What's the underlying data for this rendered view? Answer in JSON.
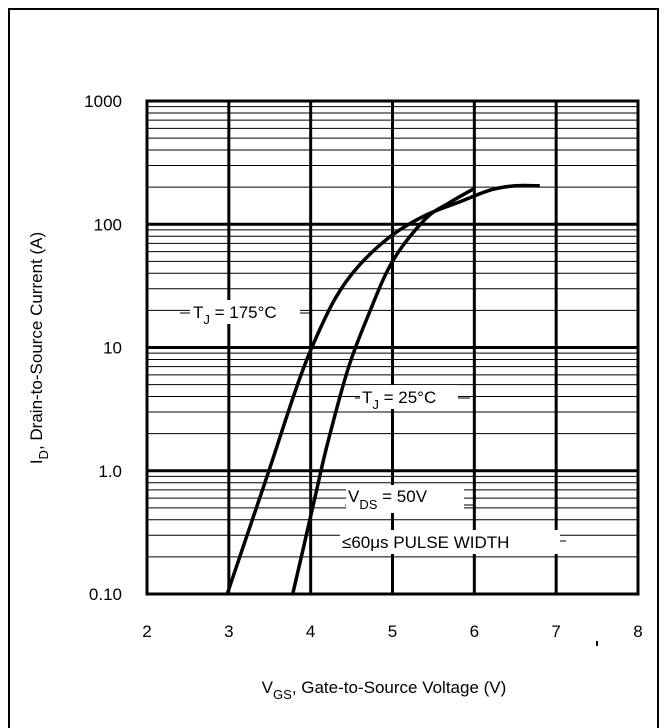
{
  "chart_data": {
    "type": "line",
    "title": "",
    "xlabel": {
      "main": "V",
      "sub": "GS",
      "rest": ", Gate-to-Source Voltage (V)"
    },
    "ylabel": {
      "main": "I",
      "sub": "D",
      "rest": ", Drain-to-Source Current (A)"
    },
    "xlim": [
      2,
      8
    ],
    "ylim": [
      0.1,
      1000
    ],
    "y_scale": "log",
    "grid": true,
    "x_ticks": [
      "2",
      "3",
      "4",
      "5",
      "6",
      "7",
      "8"
    ],
    "y_ticks": [
      {
        "value": 1000,
        "label": "1000"
      },
      {
        "value": 100,
        "label": "100"
      },
      {
        "value": 10,
        "label": "10"
      },
      {
        "value": 1,
        "label": "1.0"
      },
      {
        "value": 0.1,
        "label": "0.10"
      }
    ],
    "series": [
      {
        "name": "175°C",
        "x": [
          2.98,
          3.2,
          3.5,
          3.8,
          4.0,
          4.3,
          4.6,
          5.0,
          5.4,
          5.8,
          6.2,
          6.5,
          6.8
        ],
        "y": [
          0.1,
          0.27,
          1.05,
          4.2,
          9.5,
          25,
          47,
          82,
          118,
          150,
          190,
          205,
          205
        ]
      },
      {
        "name": "25°C",
        "x": [
          3.78,
          3.9,
          4.05,
          4.2,
          4.45,
          4.7,
          5.0,
          5.4,
          5.7,
          6.0
        ],
        "y": [
          0.1,
          0.22,
          0.6,
          1.6,
          6.5,
          18,
          50,
          110,
          150,
          195
        ]
      }
    ],
    "annotations": {
      "tj175": {
        "pre": "T",
        "sub": "J",
        "post": " = 175°C"
      },
      "tj25": {
        "pre": "T",
        "sub": "J",
        "post": " = 25°C"
      },
      "vds": {
        "pre": "V",
        "sub": "DS",
        "post": " = 50V"
      },
      "pulse": "≤60μs PULSE WIDTH"
    }
  }
}
